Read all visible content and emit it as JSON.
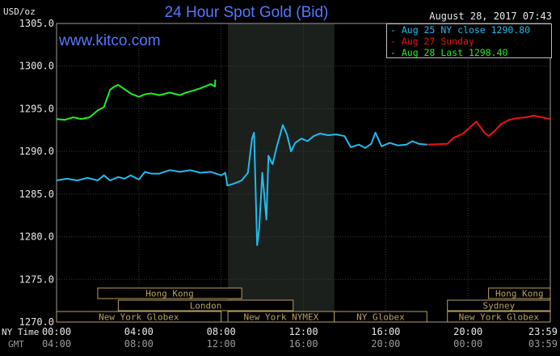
{
  "header": {
    "title": "24 Hour Spot Gold (Bid)",
    "unit": "USD/oz",
    "timestamp": "August 28, 2017 07:43",
    "watermark": "www.kitco.com"
  },
  "colors": {
    "background": "#000000",
    "grid": "#3b3b3b",
    "axis_text": "#e8e8e8",
    "title": "#5577ff",
    "aug25": "#22bbee",
    "aug27": "#ee1111",
    "aug28": "#22ee22",
    "nymex_shade": "#1c201c",
    "market_bars": "#b8a060"
  },
  "legend": [
    {
      "label": "Aug 25 NY close 1290.80",
      "color": "#22bbee"
    },
    {
      "label": "Aug 27 Sunday",
      "color": "#ee1111"
    },
    {
      "label": "Aug 28 Last 1298.40",
      "color": "#22ee22"
    }
  ],
  "x_axis": {
    "row1_label": "NY Time",
    "row2_label": "GMT",
    "ny_ticks": [
      "00:00",
      "04:00",
      "08:00",
      "12:00",
      "16:00",
      "20:00",
      "23:59"
    ],
    "gmt_ticks": [
      "04:00",
      "08:00",
      "12:00",
      "16:00",
      "20:00",
      "00:00",
      "03:59"
    ]
  },
  "markets": [
    {
      "label": "Hong Kong",
      "start": 2.0,
      "end": 9.0,
      "row": 0
    },
    {
      "label": "Hong Kong",
      "start": 21.0,
      "end": 24.0,
      "row": 0
    },
    {
      "label": "London",
      "start": 3.0,
      "end": 11.5,
      "row": 1
    },
    {
      "label": "Sydney",
      "start": 19.0,
      "end": 24.0,
      "row": 1
    },
    {
      "label": "New York Globex",
      "start": 0.0,
      "end": 8.0,
      "row": 2
    },
    {
      "label": "New York NYMEX",
      "start": 8.33,
      "end": 13.5,
      "row": 2
    },
    {
      "label": "NY Globex",
      "start": 13.5,
      "end": 18.0,
      "row": 2
    },
    {
      "label": "New York Globex",
      "start": 19.0,
      "end": 24.0,
      "row": 2
    }
  ],
  "chart_data": {
    "type": "line",
    "title": "24 Hour Spot Gold (Bid)",
    "ylabel": "USD/oz",
    "xlabel": "NY Time",
    "xlim": [
      0,
      24
    ],
    "ylim": [
      1270,
      1305
    ],
    "y_ticks": [
      "1305.0",
      "1300.0",
      "1295.0",
      "1290.0",
      "1285.0",
      "1280.0",
      "1275.0",
      "1270.0"
    ],
    "nymex_session": [
      8.33,
      13.5
    ],
    "grid": true,
    "legend_position": "top-right",
    "series": [
      {
        "name": "Aug 25 NY close 1290.80",
        "color": "#22bbee",
        "x": [
          0,
          0.5,
          1.0,
          1.5,
          2.0,
          2.3,
          2.6,
          3.0,
          3.3,
          3.6,
          4.0,
          4.3,
          4.6,
          5.0,
          5.5,
          6.0,
          6.5,
          7.0,
          7.5,
          8.0,
          8.2,
          8.3,
          8.6,
          9.0,
          9.3,
          9.5,
          9.6,
          9.75,
          9.85,
          10.0,
          10.2,
          10.3,
          10.5,
          10.7,
          11.0,
          11.2,
          11.4,
          11.6,
          11.9,
          12.2,
          12.5,
          12.8,
          13.2,
          13.6,
          14.0,
          14.3,
          14.7,
          15.0,
          15.3,
          15.5,
          15.8,
          16.2,
          16.6,
          17.0,
          17.3,
          17.6,
          18.0
        ],
        "y": [
          1286.6,
          1286.8,
          1286.6,
          1286.9,
          1286.6,
          1287.2,
          1286.6,
          1287.0,
          1286.8,
          1287.2,
          1286.7,
          1287.6,
          1287.4,
          1287.4,
          1287.8,
          1287.6,
          1287.8,
          1287.5,
          1287.6,
          1287.2,
          1287.5,
          1286.0,
          1286.2,
          1286.6,
          1287.5,
          1291.5,
          1292.2,
          1279.0,
          1281.0,
          1287.5,
          1282.0,
          1289.5,
          1288.5,
          1290.5,
          1293.1,
          1292.0,
          1290.0,
          1291.0,
          1291.5,
          1291.2,
          1291.8,
          1292.1,
          1291.9,
          1292.0,
          1291.8,
          1290.5,
          1290.8,
          1290.4,
          1290.9,
          1292.2,
          1290.6,
          1291.0,
          1290.7,
          1290.8,
          1291.2,
          1290.9,
          1290.8
        ]
      },
      {
        "name": "Aug 27 Sunday",
        "color": "#ee1111",
        "x": [
          18.0,
          19.0,
          19.3,
          19.7,
          20.0,
          20.4,
          20.8,
          21.0,
          21.3,
          21.6,
          22.0,
          22.4,
          22.8,
          23.2,
          23.6,
          24.0
        ],
        "y": [
          1290.8,
          1290.9,
          1291.6,
          1292.0,
          1292.6,
          1293.5,
          1292.2,
          1291.8,
          1292.4,
          1293.2,
          1293.7,
          1293.9,
          1294.0,
          1294.2,
          1294.0,
          1293.8
        ]
      },
      {
        "name": "Aug 28 Last 1298.40",
        "color": "#22ee22",
        "x": [
          0,
          0.4,
          0.8,
          1.2,
          1.6,
          2.0,
          2.3,
          2.6,
          2.8,
          3.0,
          3.3,
          3.6,
          4.0,
          4.3,
          4.6,
          5.0,
          5.5,
          6.0,
          6.3,
          6.6,
          7.0,
          7.3,
          7.5,
          7.7,
          7.72
        ],
        "y": [
          1293.8,
          1293.7,
          1294.0,
          1293.8,
          1294.0,
          1294.8,
          1295.2,
          1297.2,
          1297.6,
          1297.8,
          1297.3,
          1296.8,
          1296.4,
          1296.7,
          1296.8,
          1296.6,
          1296.9,
          1296.6,
          1296.9,
          1297.1,
          1297.4,
          1297.7,
          1297.9,
          1297.6,
          1298.4
        ]
      }
    ]
  }
}
